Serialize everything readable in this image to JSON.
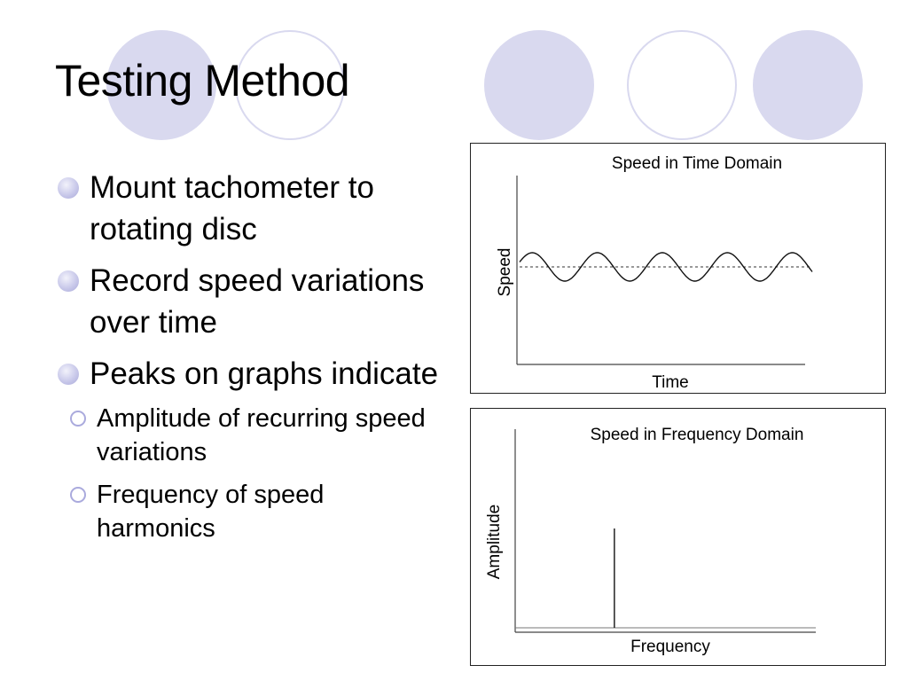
{
  "slide": {
    "title": "Testing Method",
    "bullets": [
      {
        "text": "Mount tachometer to rotating disc"
      },
      {
        "text": "Record speed variations over time"
      },
      {
        "text": "Peaks on graphs indicate",
        "sub": [
          {
            "text": "Amplitude of recurring speed variations"
          },
          {
            "text": "Frequency of speed harmonics"
          }
        ]
      }
    ],
    "colors": {
      "decoration": "#d9d9ef",
      "bullet": "#c9c9ea"
    }
  },
  "chart_data": [
    {
      "type": "line",
      "title": "Speed in Time Domain",
      "xlabel": "Time",
      "ylabel": "Speed",
      "series": [
        {
          "shape": "sinusoid",
          "cycles": 4.5,
          "relative_amplitude": 0.5,
          "style": "solid"
        },
        {
          "shape": "constant",
          "relative_level": 0.5,
          "style": "dashed"
        }
      ]
    },
    {
      "type": "line",
      "title": "Speed in Frequency Domain",
      "xlabel": "Frequency",
      "ylabel": "Amplitude",
      "series": [
        {
          "shape": "single-spike",
          "relative_position": 0.33,
          "relative_height": 0.5,
          "style": "solid"
        }
      ]
    }
  ]
}
